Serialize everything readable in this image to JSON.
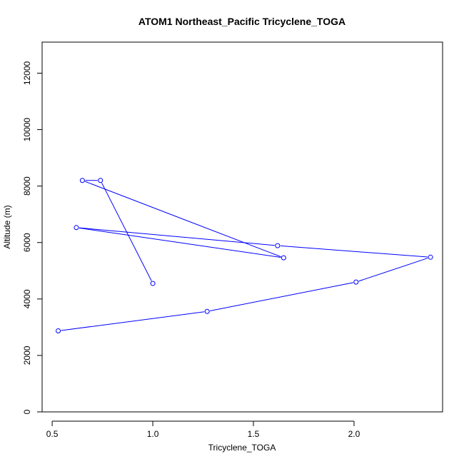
{
  "chart_data": {
    "type": "line",
    "title": "ATOM1 Northeast_Pacific Tricyclene_TOGA",
    "xlabel": "Tricyclene_TOGA",
    "ylabel": "Altitude (m)",
    "xlim": [
      0.45,
      2.44
    ],
    "ylim": [
      0,
      13100
    ],
    "xticks": [
      0.5,
      1.0,
      1.5,
      2.0
    ],
    "xtick_labels": [
      "0.5",
      "1.0",
      "1.5",
      "2.0"
    ],
    "yticks": [
      0,
      2000,
      4000,
      6000,
      8000,
      10000,
      12000
    ],
    "ytick_labels": [
      "0",
      "2000",
      "4000",
      "6000",
      "8000",
      "10000",
      "12000"
    ],
    "grid": false,
    "series": [
      {
        "color": "#0000ff",
        "marker": "open-circle",
        "x": [
          0.53,
          1.27,
          2.01,
          2.38,
          1.62,
          0.62,
          1.65,
          0.65,
          0.74,
          1.0
        ],
        "y": [
          2870,
          3560,
          4600,
          5480,
          5890,
          6530,
          5460,
          8200,
          8200,
          4550
        ]
      }
    ]
  }
}
